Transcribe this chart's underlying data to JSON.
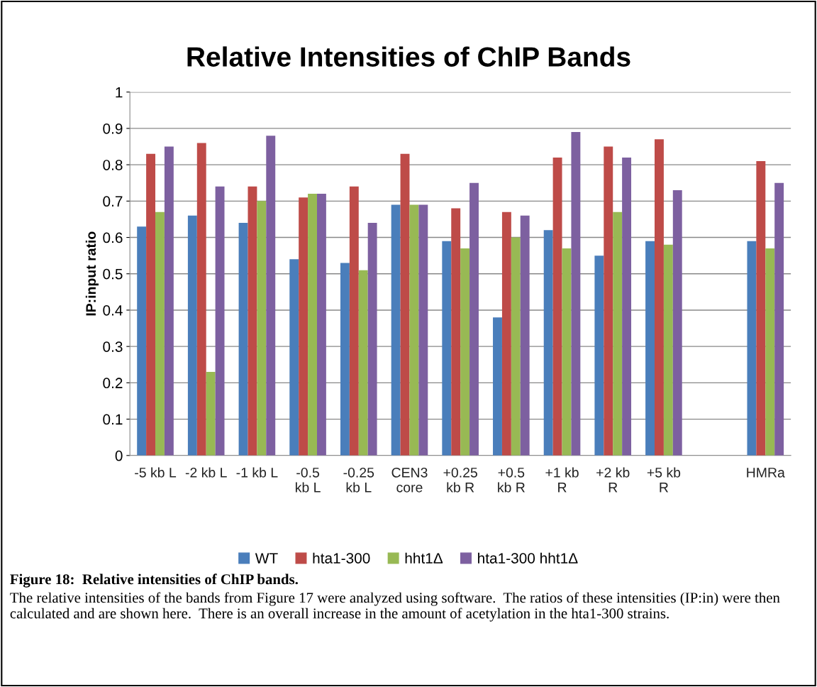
{
  "chart_data": {
    "type": "bar",
    "title": "Relative Intensities of ChIP Bands",
    "ylabel": "IP:input ratio",
    "categories": [
      "-5 kb L",
      "-2 kb L",
      "-1 kb L",
      "-0.5\nkb L",
      "-0.25\nkb L",
      "CEN3\ncore",
      "+0.25\nkb R",
      "+0.5\nkb R",
      "+1 kb\nR",
      "+2 kb\nR",
      "+5 kb\nR",
      null,
      "HMRa"
    ],
    "series": [
      {
        "name": "WT",
        "color": "#4a7ebb",
        "values": [
          0.63,
          0.66,
          0.64,
          0.54,
          0.53,
          0.69,
          0.59,
          0.38,
          0.62,
          0.55,
          0.59,
          null,
          0.59
        ]
      },
      {
        "name": "hta1-300",
        "color": "#be4b48",
        "values": [
          0.83,
          0.86,
          0.74,
          0.71,
          0.74,
          0.83,
          0.68,
          0.67,
          0.82,
          0.85,
          0.87,
          null,
          0.81
        ]
      },
      {
        "name": "hht1Δ",
        "color": "#98b954",
        "values": [
          0.67,
          0.23,
          0.7,
          0.72,
          0.51,
          0.69,
          0.57,
          0.6,
          0.57,
          0.67,
          0.58,
          null,
          0.57
        ]
      },
      {
        "name": "hta1-300 hht1Δ",
        "color": "#7d60a0",
        "values": [
          0.85,
          0.74,
          0.88,
          0.72,
          0.64,
          0.69,
          0.75,
          0.66,
          0.89,
          0.82,
          0.73,
          null,
          0.75
        ]
      }
    ],
    "ylim": [
      0,
      1
    ],
    "yticks": [
      0,
      0.1,
      0.2,
      0.3,
      0.4,
      0.5,
      0.6,
      0.7,
      0.8,
      0.9,
      1
    ],
    "grid": "y",
    "legend": "bottom",
    "annotations": [
      "Figure 18:  Relative intensities of ChIP bands.",
      "The relative intensities of the bands from Figure 17 were analyzed using software.  The ratios of these intensities (IP:in) were then calculated and are shown here.  There is an overall increase in the amount of acetylation in the hta1-300 strains."
    ]
  }
}
